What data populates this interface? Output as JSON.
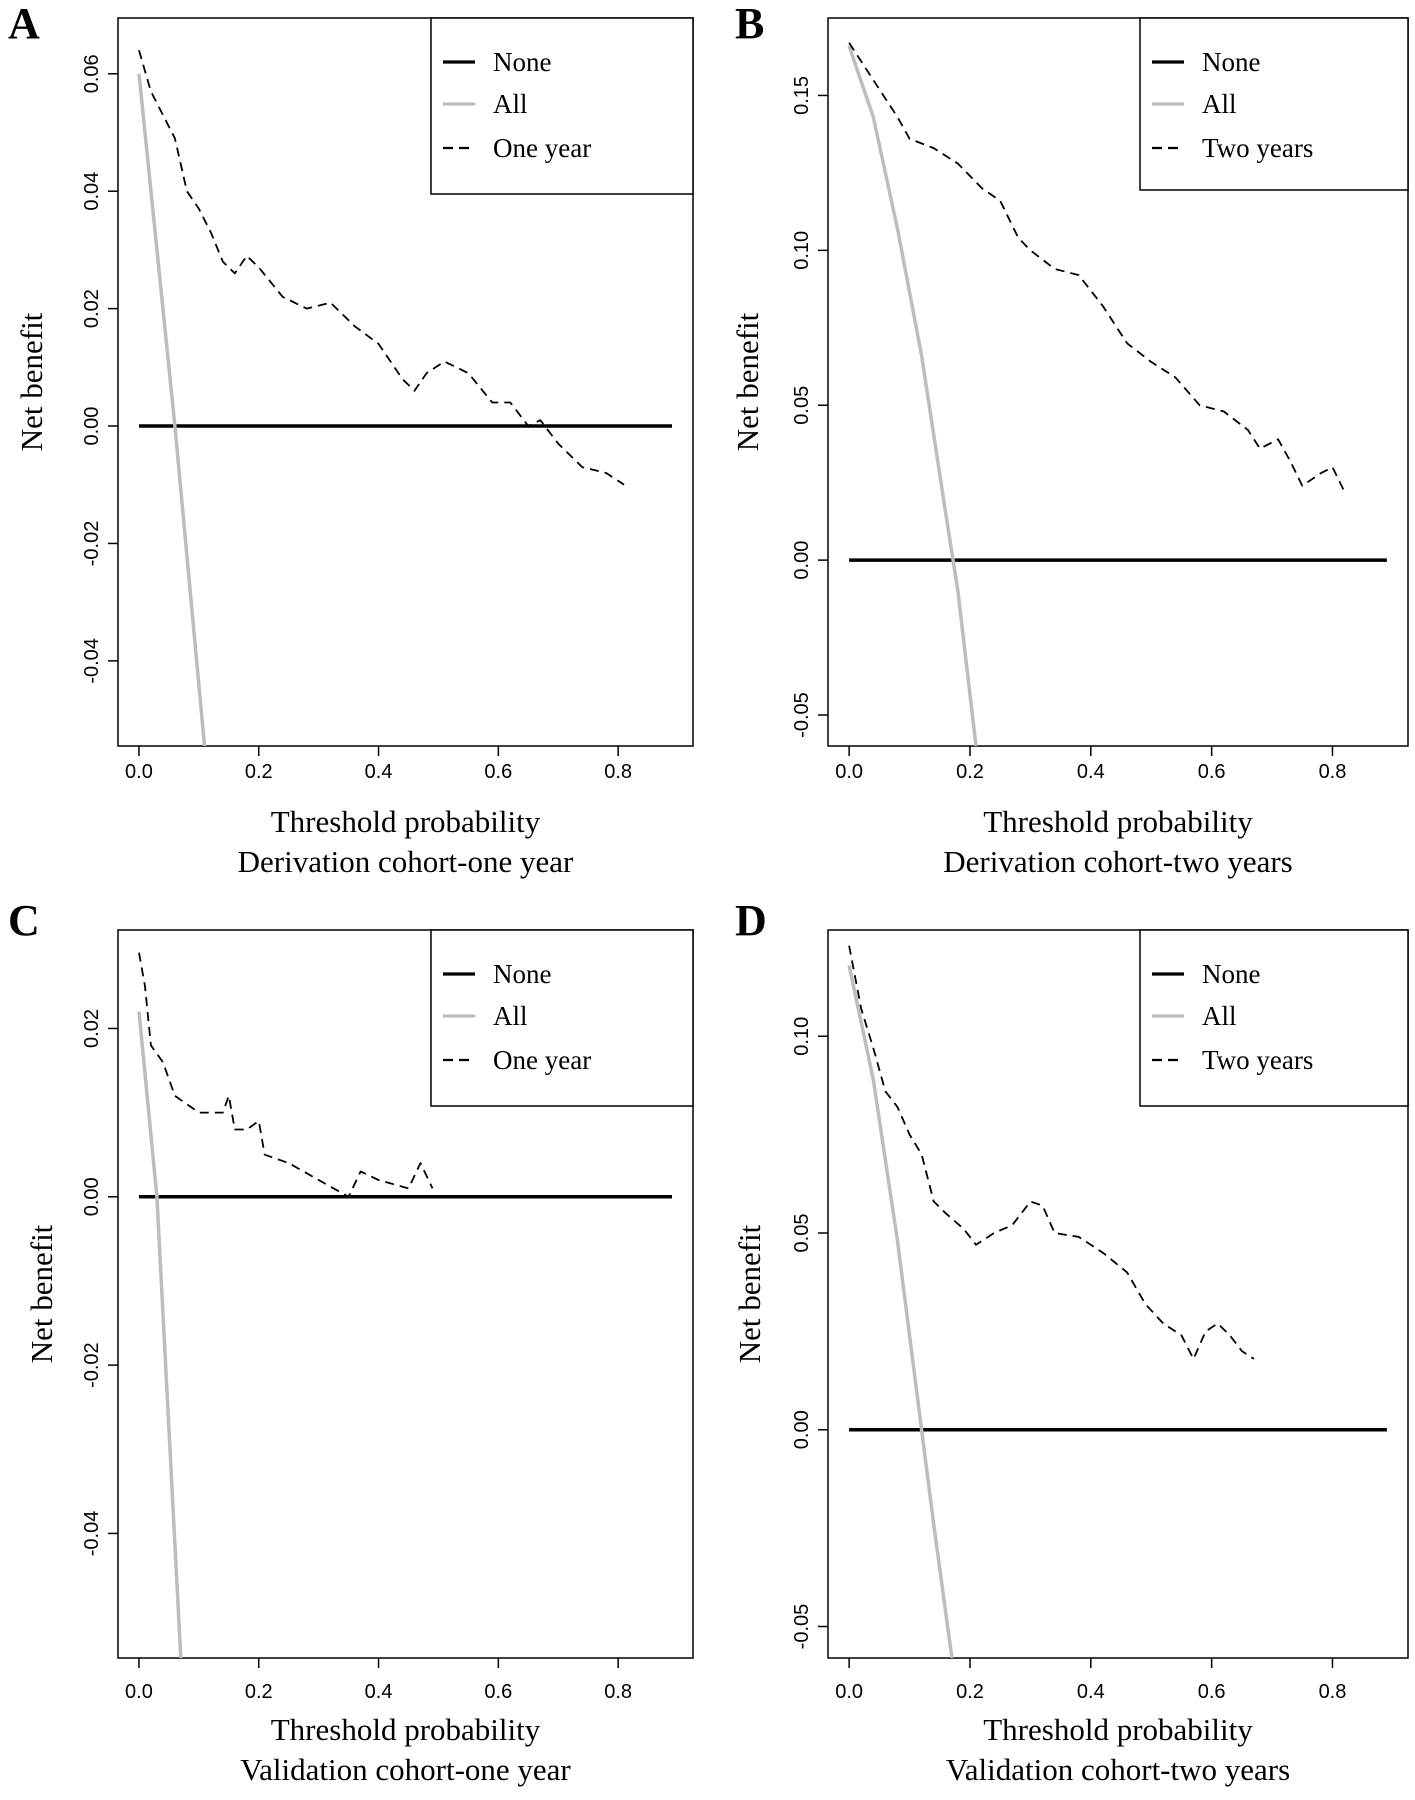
{
  "colors": {
    "none": "#000000",
    "all": "#bdbdbd",
    "model": "#000000"
  },
  "chart_data": [
    {
      "panel": "A",
      "type": "line",
      "xlabel": "Threshold probability",
      "subtitle": "Derivation cohort-one year",
      "ylabel": "Net benefit",
      "xlim": [
        -0.035,
        0.925
      ],
      "ylim": [
        -0.0545,
        0.0695
      ],
      "x_ticks": [
        0.0,
        0.2,
        0.4,
        0.6,
        0.8
      ],
      "x_tick_labels": [
        "0.0",
        "0.2",
        "0.4",
        "0.6",
        "0.8"
      ],
      "y_ticks": [
        -0.04,
        -0.02,
        0.0,
        0.02,
        0.04,
        0.06
      ],
      "y_tick_labels": [
        "-0.04",
        "-0.02",
        "0.00",
        "0.02",
        "0.04",
        "0.06"
      ],
      "legend": [
        "None",
        "All",
        "One year"
      ],
      "legend_position": "top-right",
      "series": [
        {
          "name": "None",
          "style": "solid-black",
          "points": [
            [
              0.0,
              0.0
            ],
            [
              0.89,
              0.0
            ]
          ]
        },
        {
          "name": "All",
          "style": "solid-gray",
          "points": [
            [
              0.0,
              0.06
            ],
            [
              0.06,
              0.0
            ],
            [
              0.11,
              -0.055
            ]
          ]
        },
        {
          "name": "One year",
          "style": "dashed",
          "points": [
            [
              0.0,
              0.064
            ],
            [
              0.02,
              0.057
            ],
            [
              0.04,
              0.053
            ],
            [
              0.06,
              0.049
            ],
            [
              0.08,
              0.04
            ],
            [
              0.1,
              0.037
            ],
            [
              0.12,
              0.033
            ],
            [
              0.14,
              0.028
            ],
            [
              0.16,
              0.026
            ],
            [
              0.18,
              0.029
            ],
            [
              0.2,
              0.027
            ],
            [
              0.24,
              0.022
            ],
            [
              0.28,
              0.02
            ],
            [
              0.32,
              0.021
            ],
            [
              0.36,
              0.017
            ],
            [
              0.4,
              0.014
            ],
            [
              0.44,
              0.008
            ],
            [
              0.46,
              0.006
            ],
            [
              0.48,
              0.009
            ],
            [
              0.51,
              0.011
            ],
            [
              0.55,
              0.009
            ],
            [
              0.59,
              0.004
            ],
            [
              0.62,
              0.004
            ],
            [
              0.65,
              0.0
            ],
            [
              0.67,
              0.001
            ],
            [
              0.7,
              -0.003
            ],
            [
              0.74,
              -0.007
            ],
            [
              0.78,
              -0.008
            ],
            [
              0.81,
              -0.01
            ]
          ]
        }
      ]
    },
    {
      "panel": "B",
      "type": "line",
      "xlabel": "Threshold probability",
      "subtitle": "Derivation cohort-two years",
      "ylabel": "Net benefit",
      "xlim": [
        -0.035,
        0.925
      ],
      "ylim": [
        -0.06,
        0.175
      ],
      "x_ticks": [
        0.0,
        0.2,
        0.4,
        0.6,
        0.8
      ],
      "x_tick_labels": [
        "0.0",
        "0.2",
        "0.4",
        "0.6",
        "0.8"
      ],
      "y_ticks": [
        -0.05,
        0.0,
        0.05,
        0.1,
        0.15
      ],
      "y_tick_labels": [
        "-0.05",
        "0.00",
        "0.05",
        "0.10",
        "0.15"
      ],
      "legend": [
        "None",
        "All",
        "Two years"
      ],
      "legend_position": "top-right",
      "series": [
        {
          "name": "None",
          "style": "solid-black",
          "points": [
            [
              0.0,
              0.0
            ],
            [
              0.89,
              0.0
            ]
          ]
        },
        {
          "name": "All",
          "style": "solid-gray",
          "points": [
            [
              0.0,
              0.166
            ],
            [
              0.04,
              0.143
            ],
            [
              0.08,
              0.107
            ],
            [
              0.12,
              0.066
            ],
            [
              0.16,
              0.015
            ],
            [
              0.18,
              -0.01
            ],
            [
              0.21,
              -0.06
            ]
          ]
        },
        {
          "name": "Two years",
          "style": "dashed",
          "points": [
            [
              0.0,
              0.167
            ],
            [
              0.04,
              0.155
            ],
            [
              0.08,
              0.143
            ],
            [
              0.1,
              0.136
            ],
            [
              0.14,
              0.133
            ],
            [
              0.18,
              0.128
            ],
            [
              0.22,
              0.12
            ],
            [
              0.25,
              0.116
            ],
            [
              0.28,
              0.104
            ],
            [
              0.3,
              0.1
            ],
            [
              0.34,
              0.094
            ],
            [
              0.38,
              0.092
            ],
            [
              0.42,
              0.082
            ],
            [
              0.46,
              0.07
            ],
            [
              0.5,
              0.064
            ],
            [
              0.54,
              0.059
            ],
            [
              0.58,
              0.05
            ],
            [
              0.62,
              0.048
            ],
            [
              0.66,
              0.042
            ],
            [
              0.68,
              0.036
            ],
            [
              0.71,
              0.039
            ],
            [
              0.73,
              0.032
            ],
            [
              0.75,
              0.024
            ],
            [
              0.78,
              0.028
            ],
            [
              0.8,
              0.03
            ],
            [
              0.82,
              0.022
            ]
          ]
        }
      ]
    },
    {
      "panel": "C",
      "type": "line",
      "xlabel": "Threshold probability",
      "subtitle": "Validation cohort-one year",
      "ylabel": "Net benefit",
      "xlim": [
        -0.035,
        0.925
      ],
      "ylim": [
        -0.0548,
        0.0317
      ],
      "x_ticks": [
        0.0,
        0.2,
        0.4,
        0.6,
        0.8
      ],
      "x_tick_labels": [
        "0.0",
        "0.2",
        "0.4",
        "0.6",
        "0.8"
      ],
      "y_ticks": [
        -0.04,
        -0.02,
        0.0,
        0.02
      ],
      "y_tick_labels": [
        "-0.04",
        "-0.02",
        "0.00",
        "0.02"
      ],
      "legend": [
        "None",
        "All",
        "One year"
      ],
      "legend_position": "top-right",
      "series": [
        {
          "name": "None",
          "style": "solid-black",
          "points": [
            [
              0.0,
              0.0
            ],
            [
              0.89,
              0.0
            ]
          ]
        },
        {
          "name": "All",
          "style": "solid-gray",
          "points": [
            [
              0.0,
              0.022
            ],
            [
              0.03,
              0.0
            ],
            [
              0.07,
              -0.055
            ]
          ]
        },
        {
          "name": "One year",
          "style": "dashed",
          "points": [
            [
              0.0,
              0.029
            ],
            [
              0.01,
              0.025
            ],
            [
              0.02,
              0.018
            ],
            [
              0.04,
              0.016
            ],
            [
              0.06,
              0.012
            ],
            [
              0.08,
              0.011
            ],
            [
              0.1,
              0.01
            ],
            [
              0.14,
              0.01
            ],
            [
              0.15,
              0.012
            ],
            [
              0.16,
              0.008
            ],
            [
              0.18,
              0.008
            ],
            [
              0.2,
              0.009
            ],
            [
              0.21,
              0.005
            ],
            [
              0.25,
              0.004
            ],
            [
              0.3,
              0.002
            ],
            [
              0.35,
              0.0
            ],
            [
              0.37,
              0.003
            ],
            [
              0.4,
              0.002
            ],
            [
              0.45,
              0.001
            ],
            [
              0.47,
              0.004
            ],
            [
              0.49,
              0.001
            ]
          ]
        }
      ]
    },
    {
      "panel": "D",
      "type": "line",
      "xlabel": "Threshold probability",
      "subtitle": "Validation cohort-two years",
      "ylabel": "Net benefit",
      "xlim": [
        -0.035,
        0.925
      ],
      "ylim": [
        -0.058,
        0.127
      ],
      "x_ticks": [
        0.0,
        0.2,
        0.4,
        0.6,
        0.8
      ],
      "x_tick_labels": [
        "0.0",
        "0.2",
        "0.4",
        "0.6",
        "0.8"
      ],
      "y_ticks": [
        -0.05,
        0.0,
        0.05,
        0.1
      ],
      "y_tick_labels": [
        "-0.05",
        "0.00",
        "0.05",
        "0.10"
      ],
      "legend": [
        "None",
        "All",
        "Two years"
      ],
      "legend_position": "top-right",
      "series": [
        {
          "name": "None",
          "style": "solid-black",
          "points": [
            [
              0.0,
              0.0
            ],
            [
              0.89,
              0.0
            ]
          ]
        },
        {
          "name": "All",
          "style": "solid-gray",
          "points": [
            [
              0.0,
              0.118
            ],
            [
              0.04,
              0.089
            ],
            [
              0.08,
              0.048
            ],
            [
              0.12,
              0.0
            ],
            [
              0.14,
              -0.024
            ],
            [
              0.17,
              -0.058
            ]
          ]
        },
        {
          "name": "Two years",
          "style": "dashed",
          "points": [
            [
              0.0,
              0.123
            ],
            [
              0.02,
              0.107
            ],
            [
              0.04,
              0.097
            ],
            [
              0.06,
              0.086
            ],
            [
              0.08,
              0.082
            ],
            [
              0.1,
              0.075
            ],
            [
              0.12,
              0.07
            ],
            [
              0.14,
              0.058
            ],
            [
              0.16,
              0.055
            ],
            [
              0.19,
              0.051
            ],
            [
              0.21,
              0.047
            ],
            [
              0.24,
              0.05
            ],
            [
              0.27,
              0.052
            ],
            [
              0.3,
              0.058
            ],
            [
              0.32,
              0.057
            ],
            [
              0.34,
              0.05
            ],
            [
              0.38,
              0.049
            ],
            [
              0.42,
              0.045
            ],
            [
              0.46,
              0.04
            ],
            [
              0.49,
              0.032
            ],
            [
              0.52,
              0.027
            ],
            [
              0.55,
              0.024
            ],
            [
              0.57,
              0.018
            ],
            [
              0.59,
              0.025
            ],
            [
              0.61,
              0.027
            ],
            [
              0.63,
              0.024
            ],
            [
              0.65,
              0.02
            ],
            [
              0.67,
              0.018
            ]
          ]
        }
      ]
    }
  ]
}
